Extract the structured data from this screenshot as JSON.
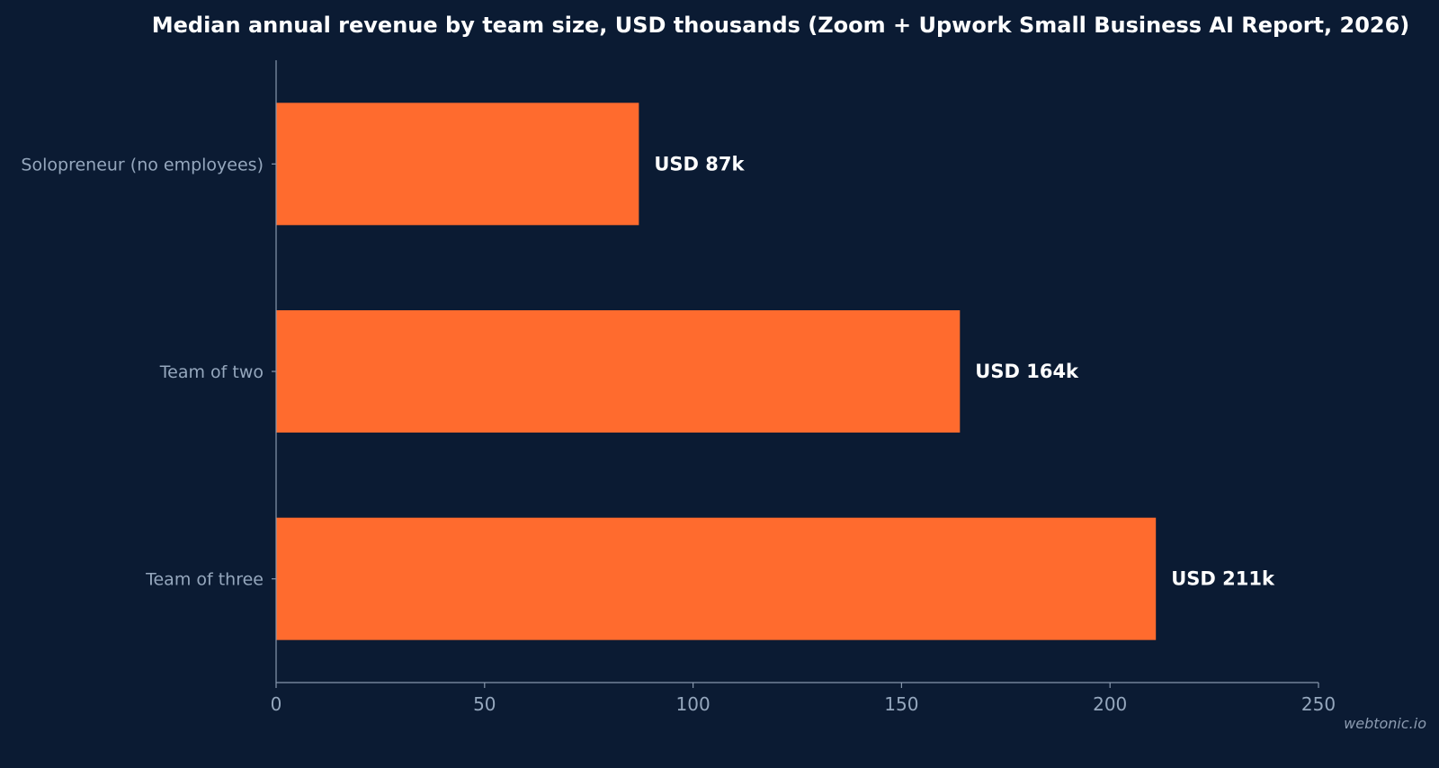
{
  "chart_data": {
    "type": "bar",
    "orientation": "horizontal",
    "title": "Median annual revenue by team size, USD thousands (Zoom + Upwork Small Business AI Report, 2026)",
    "xlabel": "",
    "ylabel": "",
    "categories": [
      "Solopreneur (no employees)",
      "Team of two",
      "Team of three"
    ],
    "values": [
      87,
      164,
      211
    ],
    "data_labels": [
      "USD 87k",
      "USD 164k",
      "USD 211k"
    ],
    "xlim": [
      0,
      250
    ],
    "xticks": [
      0,
      50,
      100,
      150,
      200,
      250
    ],
    "grid": false,
    "bar_color": "#ff6b2e",
    "background_color": "#0b1b33"
  },
  "watermark": "webtonic.io"
}
